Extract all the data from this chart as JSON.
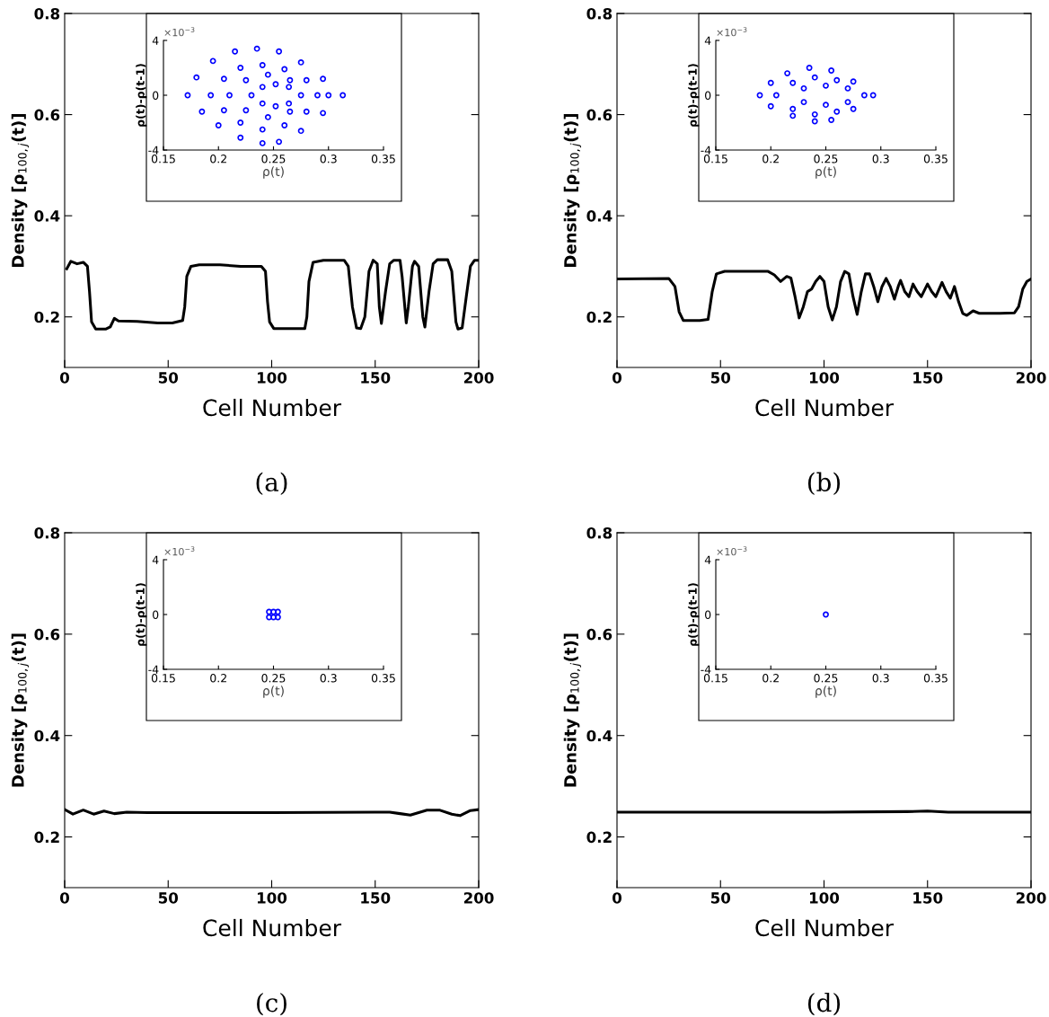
{
  "chart_data": [
    {
      "type": "line",
      "xlabel": "Cell Number",
      "ylabel": "Density [ρ$_{100,j}$(t)]",
      "annotations": [
        "(a)"
      ],
      "xlim": [
        0,
        200
      ],
      "ylim": [
        0.1,
        0.8
      ],
      "xticks": [
        0,
        50,
        100,
        150,
        200
      ],
      "yticks": [
        0.2,
        0.4,
        0.6,
        0.8
      ],
      "x": [
        1,
        3,
        6,
        9,
        11,
        12,
        13,
        15,
        20,
        22,
        24,
        26,
        35,
        45,
        52,
        57,
        58,
        59,
        61,
        65,
        75,
        85,
        95,
        97,
        98,
        99,
        101,
        110,
        116,
        117,
        118,
        120,
        125,
        135,
        137,
        139,
        141,
        143,
        145,
        147,
        149,
        151,
        152,
        153,
        155,
        157,
        159,
        162,
        163,
        165,
        166,
        168,
        169,
        171,
        173,
        174,
        176,
        178,
        180,
        185,
        187,
        189,
        190,
        192,
        194,
        196,
        198,
        200
      ],
      "series": [
        {
          "color": "#000000",
          "values": [
            0.295,
            0.31,
            0.305,
            0.308,
            0.3,
            0.25,
            0.19,
            0.176,
            0.176,
            0.18,
            0.197,
            0.192,
            0.191,
            0.188,
            0.188,
            0.193,
            0.22,
            0.28,
            0.3,
            0.303,
            0.303,
            0.3,
            0.3,
            0.29,
            0.23,
            0.19,
            0.177,
            0.177,
            0.177,
            0.2,
            0.27,
            0.308,
            0.312,
            0.312,
            0.3,
            0.22,
            0.178,
            0.177,
            0.2,
            0.29,
            0.312,
            0.305,
            0.22,
            0.187,
            0.25,
            0.305,
            0.312,
            0.312,
            0.28,
            0.188,
            0.22,
            0.3,
            0.31,
            0.3,
            0.2,
            0.18,
            0.25,
            0.305,
            0.313,
            0.313,
            0.29,
            0.19,
            0.176,
            0.178,
            0.24,
            0.3,
            0.312,
            0.312
          ]
        }
      ]
    },
    {
      "type": "line",
      "xlabel": "Cell Number",
      "ylabel": "Density [ρ$_{100,j}$(t)]",
      "annotations": [
        "(b)"
      ],
      "xlim": [
        0,
        200
      ],
      "ylim": [
        0.1,
        0.8
      ],
      "xticks": [
        0,
        50,
        100,
        150,
        200
      ],
      "yticks": [
        0.2,
        0.4,
        0.6,
        0.8
      ],
      "x": [
        0,
        25,
        28,
        30,
        32,
        40,
        44,
        46,
        48,
        52,
        73,
        76,
        79,
        82,
        84,
        86,
        88,
        90,
        92,
        94,
        96,
        98,
        100,
        102,
        104,
        106,
        108,
        110,
        112,
        114,
        116,
        118,
        120,
        122,
        124,
        126,
        128,
        130,
        132,
        134,
        136,
        137,
        139,
        141,
        143,
        145,
        147,
        150,
        152,
        154,
        157,
        159,
        161,
        163,
        165,
        167,
        169,
        172,
        175,
        185,
        192,
        194,
        196,
        198,
        200
      ],
      "series": [
        {
          "color": "#000000",
          "values": [
            0.275,
            0.276,
            0.26,
            0.21,
            0.193,
            0.193,
            0.195,
            0.25,
            0.285,
            0.29,
            0.29,
            0.283,
            0.27,
            0.28,
            0.277,
            0.24,
            0.198,
            0.22,
            0.25,
            0.255,
            0.27,
            0.28,
            0.27,
            0.22,
            0.194,
            0.22,
            0.27,
            0.29,
            0.285,
            0.24,
            0.205,
            0.25,
            0.285,
            0.285,
            0.26,
            0.23,
            0.26,
            0.276,
            0.26,
            0.235,
            0.262,
            0.272,
            0.25,
            0.24,
            0.265,
            0.25,
            0.24,
            0.265,
            0.25,
            0.24,
            0.268,
            0.25,
            0.237,
            0.26,
            0.23,
            0.207,
            0.203,
            0.212,
            0.207,
            0.207,
            0.208,
            0.22,
            0.255,
            0.27,
            0.275
          ]
        }
      ]
    },
    {
      "type": "line",
      "xlabel": "Cell Number",
      "ylabel": "Density [ρ$_{100,j}$(t)]",
      "annotations": [
        "(c)"
      ],
      "xlim": [
        0,
        200
      ],
      "ylim": [
        0.1,
        0.8
      ],
      "xticks": [
        0,
        50,
        100,
        150,
        200
      ],
      "yticks": [
        0.2,
        0.4,
        0.6,
        0.8
      ],
      "x": [
        0,
        4,
        9,
        14,
        19,
        24,
        30,
        40,
        60,
        100,
        150,
        157,
        162,
        167,
        175,
        181,
        187,
        191,
        196,
        200
      ],
      "series": [
        {
          "color": "#000000",
          "values": [
            0.254,
            0.245,
            0.253,
            0.245,
            0.251,
            0.246,
            0.249,
            0.248,
            0.248,
            0.248,
            0.249,
            0.249,
            0.246,
            0.243,
            0.253,
            0.253,
            0.245,
            0.242,
            0.252,
            0.254
          ]
        }
      ]
    },
    {
      "type": "line",
      "xlabel": "Cell Number",
      "ylabel": "Density [ρ$_{100,j}$(t)]",
      "annotations": [
        "(d)"
      ],
      "xlim": [
        0,
        200
      ],
      "ylim": [
        0.1,
        0.8
      ],
      "xticks": [
        0,
        50,
        100,
        150,
        200
      ],
      "yticks": [
        0.2,
        0.4,
        0.6,
        0.8
      ],
      "x": [
        0,
        50,
        100,
        140,
        150,
        160,
        200
      ],
      "series": [
        {
          "color": "#000000",
          "values": [
            0.249,
            0.249,
            0.249,
            0.25,
            0.251,
            0.249,
            0.249
          ]
        }
      ]
    },
    {
      "type": "scatter",
      "marker": "circle",
      "xlabel": "ρ(t)",
      "ylabel": "ρ(t)-ρ(t-1)",
      "annotations": [
        "×10$^{−3}$"
      ],
      "xlim": [
        0.15,
        0.35
      ],
      "ylim": [
        -4,
        4
      ],
      "xticks": [
        0.15,
        0.2,
        0.25,
        0.3,
        0.35
      ],
      "yticks": [
        -4,
        0,
        4
      ],
      "series": [
        {
          "color": "#0000ff",
          "x": [
            0.172,
            0.18,
            0.195,
            0.215,
            0.235,
            0.255,
            0.275,
            0.295,
            0.313,
            0.295,
            0.275,
            0.255,
            0.24,
            0.22,
            0.2,
            0.185
          ],
          "values": [
            0,
            1.3,
            2.5,
            3.2,
            3.4,
            3.2,
            2.4,
            1.2,
            0,
            -1.3,
            -2.6,
            -3.4,
            -3.5,
            -3.1,
            -2.2,
            -1.2
          ]
        },
        {
          "color": "#0000ff",
          "x": [
            0.193,
            0.205,
            0.22,
            0.24,
            0.26,
            0.28,
            0.3,
            0.28,
            0.26,
            0.24,
            0.22,
            0.205
          ],
          "values": [
            0,
            1.2,
            2.0,
            2.2,
            1.9,
            1.1,
            0,
            -1.2,
            -2.2,
            -2.5,
            -2.0,
            -1.1
          ]
        },
        {
          "color": "#0000ff",
          "x": [
            0.21,
            0.225,
            0.245,
            0.265,
            0.29,
            0.265,
            0.245,
            0.225
          ],
          "values": [
            0,
            1.1,
            1.5,
            1.1,
            0,
            -1.2,
            -1.6,
            -1.1
          ]
        },
        {
          "color": "#0000ff",
          "x": [
            0.23,
            0.24,
            0.252,
            0.264,
            0.275,
            0.264,
            0.252,
            0.24
          ],
          "values": [
            0,
            0.6,
            0.8,
            0.6,
            0,
            -0.6,
            -0.8,
            -0.6
          ]
        }
      ]
    },
    {
      "type": "scatter",
      "marker": "circle",
      "xlabel": "ρ(t)",
      "ylabel": "ρ(t)-ρ(t-1)",
      "annotations": [
        "×10$^{−3}$"
      ],
      "xlim": [
        0.15,
        0.35
      ],
      "ylim": [
        -4,
        4
      ],
      "xticks": [
        0.15,
        0.2,
        0.25,
        0.3,
        0.35
      ],
      "yticks": [
        -4,
        0,
        4
      ],
      "series": [
        {
          "color": "#0000ff",
          "x": [
            0.19,
            0.2,
            0.215,
            0.235,
            0.255,
            0.275,
            0.293,
            0.275,
            0.255,
            0.24,
            0.22,
            0.2
          ],
          "values": [
            0,
            0.9,
            1.6,
            2.0,
            1.8,
            1.0,
            0,
            -1.0,
            -1.8,
            -1.9,
            -1.5,
            -0.8
          ]
        },
        {
          "color": "#0000ff",
          "x": [
            0.205,
            0.22,
            0.24,
            0.26,
            0.26,
            0.24,
            0.22
          ],
          "values": [
            0,
            0.9,
            1.3,
            1.1,
            -1.2,
            -1.4,
            -1.0
          ]
        },
        {
          "color": "#0000ff",
          "x": [
            0.23,
            0.25,
            0.27,
            0.285,
            0.27,
            0.25,
            0.23
          ],
          "values": [
            0.5,
            0.7,
            0.5,
            0,
            -0.5,
            -0.7,
            -0.5
          ]
        }
      ]
    },
    {
      "type": "scatter",
      "marker": "circle",
      "xlabel": "ρ(t)",
      "ylabel": "ρ(t)-ρ(t-1)",
      "annotations": [
        "×10$^{−3}$"
      ],
      "xlim": [
        0.15,
        0.35
      ],
      "ylim": [
        -4,
        4
      ],
      "xticks": [
        0.15,
        0.2,
        0.25,
        0.3,
        0.35
      ],
      "yticks": [
        -4,
        0,
        4
      ],
      "series": [
        {
          "color": "#0000ff",
          "x": [
            0.246,
            0.25,
            0.254,
            0.246,
            0.25,
            0.254
          ],
          "values": [
            0.2,
            0.2,
            0.2,
            -0.2,
            -0.2,
            -0.2
          ]
        }
      ]
    },
    {
      "type": "scatter",
      "marker": "circle",
      "xlabel": "ρ(t)",
      "ylabel": "ρ(t)-ρ(t-1)",
      "annotations": [
        "×10$^{−3}$"
      ],
      "xlim": [
        0.15,
        0.35
      ],
      "ylim": [
        -4,
        4
      ],
      "xticks": [
        0.15,
        0.2,
        0.25,
        0.3,
        0.35
      ],
      "yticks": [
        -4,
        0,
        4
      ],
      "series": [
        {
          "color": "#0000ff",
          "x": [
            0.25
          ],
          "values": [
            0
          ]
        }
      ]
    }
  ]
}
